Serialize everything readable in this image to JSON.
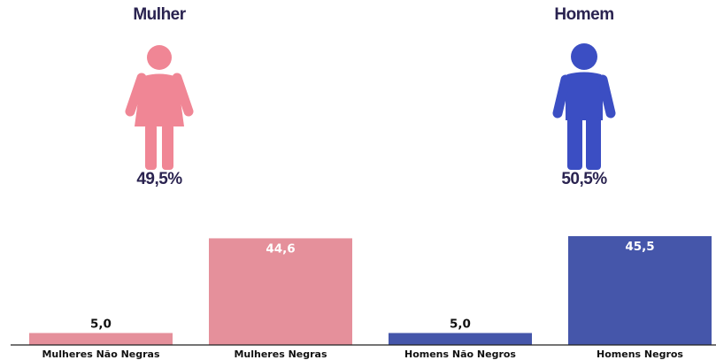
{
  "gender_summary": {
    "female": {
      "title": "Mulher",
      "percent": "49,5%",
      "color": "#f08695",
      "icon": "woman-icon"
    },
    "male": {
      "title": "Homem",
      "percent": "50,5%",
      "color": "#3b4ec3",
      "icon": "man-icon"
    }
  },
  "chart_data": {
    "type": "bar",
    "categories": [
      "Mulheres Não Negras",
      "Mulheres Negras",
      "Homens Não Negros",
      "Homens Negros"
    ],
    "values": [
      5.0,
      44.6,
      5.0,
      45.5
    ],
    "value_labels": [
      "5,0",
      "44,6",
      "5,0",
      "45,5"
    ],
    "colors": [
      "#e5909b",
      "#e5909b",
      "#4556aa",
      "#4556aa"
    ],
    "title": "",
    "xlabel": "",
    "ylabel": "",
    "ylim": [
      0,
      45.5
    ],
    "grid": false,
    "legend": "none"
  }
}
